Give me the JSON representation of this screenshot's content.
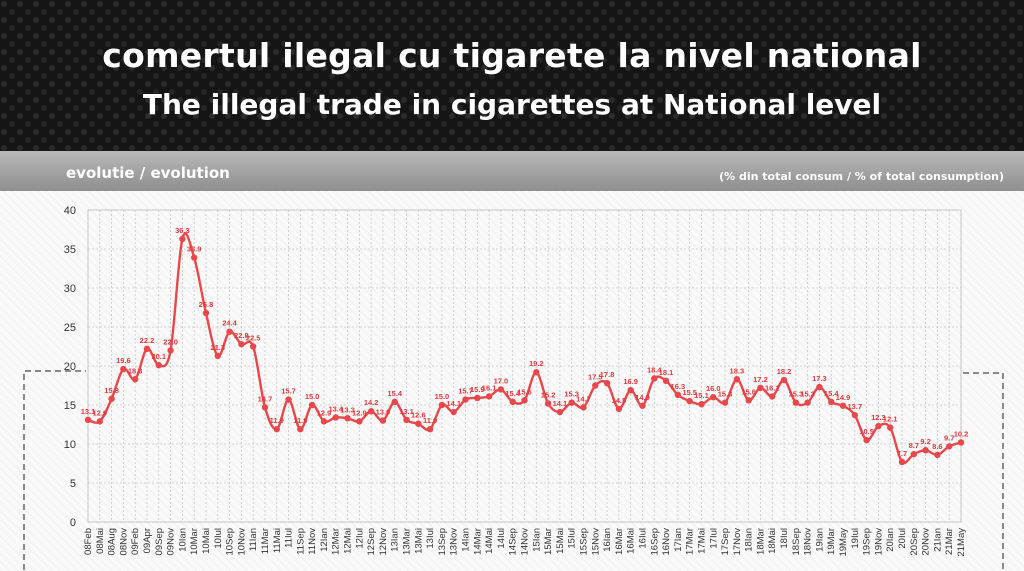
{
  "header": {
    "title": "comertul ilegal cu tigarete la nivel national",
    "subtitle": "The illegal trade in cigarettes at National level"
  },
  "panel": {
    "title": "evolutie / evolution",
    "unit_note": "(% din total consum / % of total consumption)"
  },
  "colors": {
    "line": "#e8484b",
    "label": "#e0383c",
    "grid": "#c8c8c8",
    "axis_text": "#333333"
  },
  "chart_data": {
    "type": "line",
    "title": "evolutie / evolution",
    "ylabel": "",
    "xlabel": "",
    "ylim": [
      0,
      40
    ],
    "yticks": [
      0,
      5,
      10,
      15,
      20,
      25,
      30,
      35,
      40
    ],
    "grid": true,
    "categories": [
      "08Feb",
      "08Mai",
      "08Aug",
      "08Nov",
      "09Feb",
      "09Apr",
      "09Sep",
      "09Nov",
      "10Ian",
      "10Mar",
      "10Mai",
      "10Iul",
      "10Sep",
      "10Nov",
      "11Ian",
      "11Mar",
      "11Mai",
      "11Iul",
      "11Sep",
      "11Nov",
      "12Ian",
      "12Mar",
      "12Mai",
      "12Iul",
      "12Sep",
      "12Nov",
      "13Ian",
      "13Mar",
      "13Mai",
      "13Iul",
      "13Sep",
      "13Nov",
      "14Ian",
      "14Mar",
      "14Mai",
      "14Iul",
      "14Sep",
      "14Nov",
      "15Ian",
      "15Mar",
      "15Mai",
      "15Iul",
      "15Sep",
      "15Nov",
      "16Ian",
      "16Mar",
      "16Mai",
      "16Iul",
      "16Sep",
      "16Nov",
      "17Ian",
      "17Mar",
      "17Mai",
      "17Iul",
      "17Sep",
      "17Nov",
      "18Ian",
      "18Mar",
      "18Mai",
      "18Iul",
      "18Sep",
      "18Nov",
      "19Ian",
      "19Mar",
      "19May",
      "19Iul",
      "19Sep",
      "19Nov",
      "20Ian",
      "20Iul",
      "20Sep",
      "20Nov",
      "21Ian",
      "21Mar",
      "21May"
    ],
    "values": [
      13.1,
      12.9,
      15.8,
      19.6,
      18.3,
      22.2,
      20.1,
      22.0,
      36.3,
      33.9,
      26.8,
      21.3,
      24.4,
      22.8,
      22.5,
      14.7,
      11.9,
      15.7,
      11.9,
      15.0,
      12.9,
      13.4,
      13.3,
      12.9,
      14.2,
      13.0,
      15.4,
      13.1,
      12.6,
      11.9,
      15.0,
      14.1,
      15.7,
      15.9,
      16.1,
      17.0,
      15.4,
      15.6,
      19.2,
      15.2,
      14.1,
      15.3,
      14.7,
      17.5,
      17.8,
      14.5,
      16.9,
      14.9,
      18.4,
      18.1,
      16.3,
      15.5,
      15.1,
      16.0,
      15.3,
      18.3,
      15.6,
      17.2,
      16.1,
      18.2,
      15.3,
      15.3,
      17.3,
      15.4,
      14.9,
      13.7,
      10.5,
      12.3,
      12.1,
      7.7,
      8.7,
      9.2,
      8.6,
      9.7,
      10.2
    ],
    "data_labels": [
      "13.1",
      "12.9",
      "15.8",
      "19.6",
      "18.3",
      "22.2",
      "20.1",
      "22.0",
      "36.3",
      "33.9",
      "26.8",
      "21.3",
      "24.4",
      "22.8",
      "22.5",
      "14.7",
      "11.9",
      "15.7",
      "11.9",
      "15.0",
      "12.9",
      "13.4",
      "13.3",
      "12.9",
      "14.2",
      "13.0",
      "15.4",
      "13.1",
      "12.6",
      "11.9",
      "15.0",
      "14.1",
      "15.7",
      "15.9",
      "16.1",
      "17.0",
      "15.4",
      "15.6",
      "19.2",
      "15.2",
      "14.1",
      "15.3",
      "14.7",
      "17.5",
      "17.8",
      "14.5",
      "16.9",
      "14.9",
      "18.4",
      "18.1",
      "16.3",
      "15.5",
      "15.1",
      "16.0",
      "15.3",
      "18.3",
      "15.6",
      "17.2",
      "16.1",
      "18.2",
      "15.3",
      "15.3",
      "17.3",
      "15.4",
      "14.9",
      "13.7",
      "10.5",
      "12.3",
      "12.1",
      "7.7",
      "8.7",
      "9.2",
      "8.6",
      "9.7",
      "10.2"
    ]
  }
}
